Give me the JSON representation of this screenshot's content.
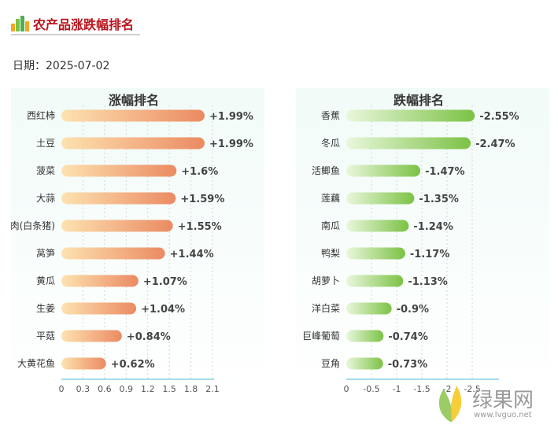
{
  "header": {
    "title": "农产品涨跌幅排名"
  },
  "date": {
    "label": "日期：2025-07-02"
  },
  "colors": {
    "title": "#b8141c",
    "rise_start": "#fde2b0",
    "rise_end": "#eb8a62",
    "fall_start": "#e9f7dc",
    "fall_end": "#7cc245"
  },
  "chart_data": [
    {
      "type": "bar",
      "orientation": "horizontal",
      "title": "涨幅排名",
      "categories": [
        "西红柿",
        "土豆",
        "菠菜",
        "大蒜",
        "肉(白条猪)",
        "莴笋",
        "黄瓜",
        "生姜",
        "平菇",
        "大黄花鱼"
      ],
      "values": [
        1.99,
        1.99,
        1.6,
        1.59,
        1.55,
        1.44,
        1.07,
        1.04,
        0.84,
        0.62
      ],
      "data_labels": [
        "+1.99%",
        "+1.99%",
        "+1.6%",
        "+1.59%",
        "+1.55%",
        "+1.44%",
        "+1.07%",
        "+1.04%",
        "+0.84%",
        "+0.62%"
      ],
      "xlim": [
        0,
        2.1
      ],
      "xticks": [
        "0",
        "0.3",
        "0.6",
        "0.9",
        "1.2",
        "1.5",
        "1.8",
        "2.1"
      ],
      "grid": true
    },
    {
      "type": "bar",
      "orientation": "horizontal",
      "title": "跌幅排名",
      "categories": [
        "香蕉",
        "冬瓜",
        "活鲫鱼",
        "莲藕",
        "南瓜",
        "鸭梨",
        "胡萝卜",
        "洋白菜",
        "巨峰葡萄",
        "豆角"
      ],
      "values": [
        -2.55,
        -2.47,
        -1.47,
        -1.35,
        -1.24,
        -1.17,
        -1.13,
        -0.9,
        -0.74,
        -0.73
      ],
      "data_labels": [
        "-2.55%",
        "-2.47%",
        "-1.47%",
        "-1.35%",
        "-1.24%",
        "-1.17%",
        "-1.13%",
        "-0.9%",
        "-0.74%",
        "-0.73%"
      ],
      "xlim": [
        0,
        -3
      ],
      "xticks": [
        "0",
        "-0.5",
        "-1",
        "-1.5",
        "-2",
        "-2.5"
      ],
      "grid": true
    }
  ],
  "watermark": {
    "name": "绿果网",
    "url": "www.lvguo.net"
  }
}
